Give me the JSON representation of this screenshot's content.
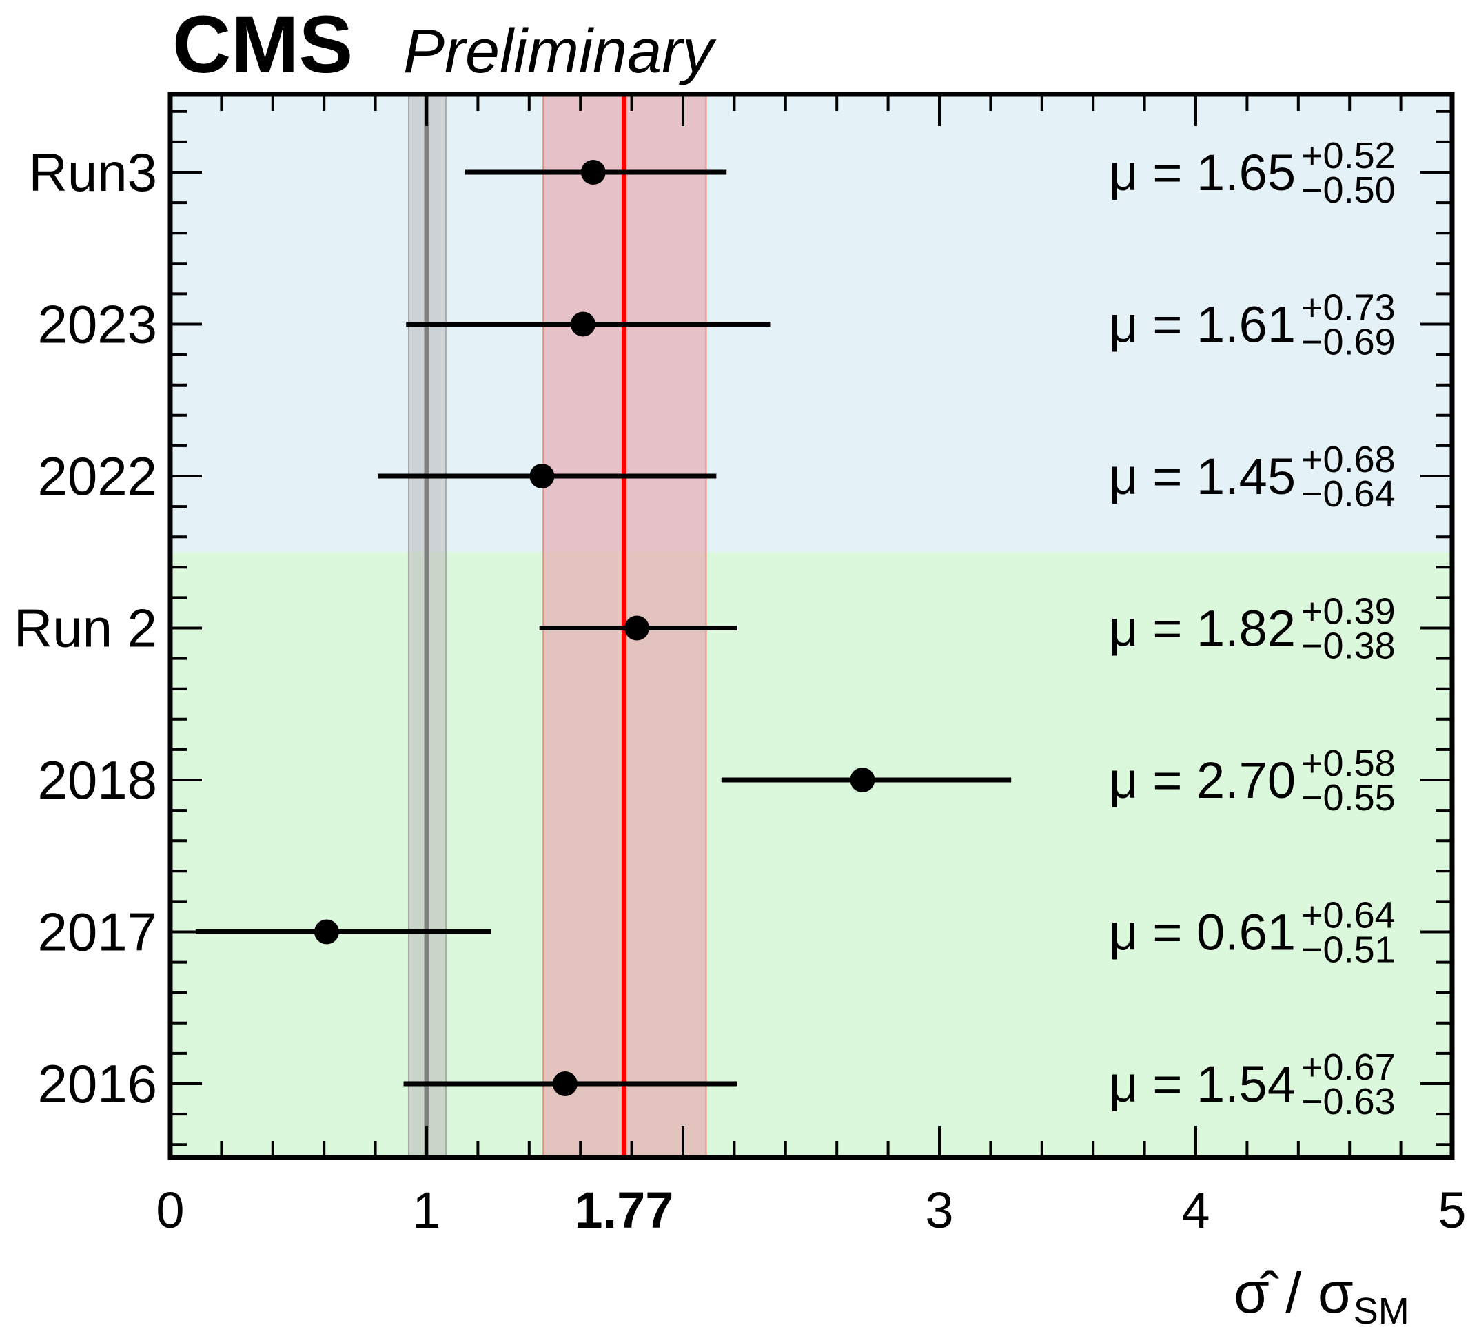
{
  "header": {
    "experiment": "CMS",
    "status": "Preliminary"
  },
  "chart_data": {
    "type": "scatter",
    "orientation": "horizontal-errorbars",
    "xlim": [
      0,
      5
    ],
    "xticks": [
      "0",
      "1",
      "1.77",
      "3",
      "4",
      "5"
    ],
    "xtick_values": [
      0,
      1,
      1.77,
      3,
      4,
      5
    ],
    "xlabel_main": "σ̂ / σ",
    "xlabel_sub": "SM",
    "categories": [
      "Run3",
      "2023",
      "2022",
      "Run 2",
      "2018",
      "2017",
      "2016"
    ],
    "points": [
      {
        "label": "Run3",
        "mu": 1.65,
        "up": 0.52,
        "down": 0.5,
        "mu_text": "μ = 1.65",
        "up_text": "+0.52",
        "down_text": "−0.50"
      },
      {
        "label": "2023",
        "mu": 1.61,
        "up": 0.73,
        "down": 0.69,
        "mu_text": "μ = 1.61",
        "up_text": "+0.73",
        "down_text": "−0.69"
      },
      {
        "label": "2022",
        "mu": 1.45,
        "up": 0.68,
        "down": 0.64,
        "mu_text": "μ = 1.45",
        "up_text": "+0.68",
        "down_text": "−0.64"
      },
      {
        "label": "Run 2",
        "mu": 1.82,
        "up": 0.39,
        "down": 0.38,
        "mu_text": "μ = 1.82",
        "up_text": "+0.39",
        "down_text": "−0.38"
      },
      {
        "label": "2018",
        "mu": 2.7,
        "up": 0.58,
        "down": 0.55,
        "mu_text": "μ = 2.70",
        "up_text": "+0.58",
        "down_text": "−0.55"
      },
      {
        "label": "2017",
        "mu": 0.61,
        "up": 0.64,
        "down": 0.51,
        "mu_text": "μ = 0.61",
        "up_text": "+0.64",
        "down_text": "−0.51"
      },
      {
        "label": "2016",
        "mu": 1.54,
        "up": 0.67,
        "down": 0.63,
        "mu_text": "μ = 1.54",
        "up_text": "+0.67",
        "down_text": "−0.63"
      }
    ],
    "combined": {
      "value": 1.77,
      "band": [
        1.455,
        2.09
      ]
    },
    "sm_reference": {
      "value": 1.0,
      "band": [
        0.93,
        1.075
      ]
    },
    "regions": [
      {
        "name": "Run 3",
        "rows": [
          "Run3",
          "2023",
          "2022"
        ],
        "color": "#e4f2f8"
      },
      {
        "name": "Run 2",
        "rows": [
          "Run 2",
          "2018",
          "2017",
          "2016"
        ],
        "color": "#dcf8dc"
      }
    ],
    "colors": {
      "combined_line": "#ff0000",
      "combined_band": "#e8a0a8",
      "sm_line": "#808080",
      "sm_band": "#b8b8b8",
      "points": "#000000"
    },
    "grid": false
  }
}
